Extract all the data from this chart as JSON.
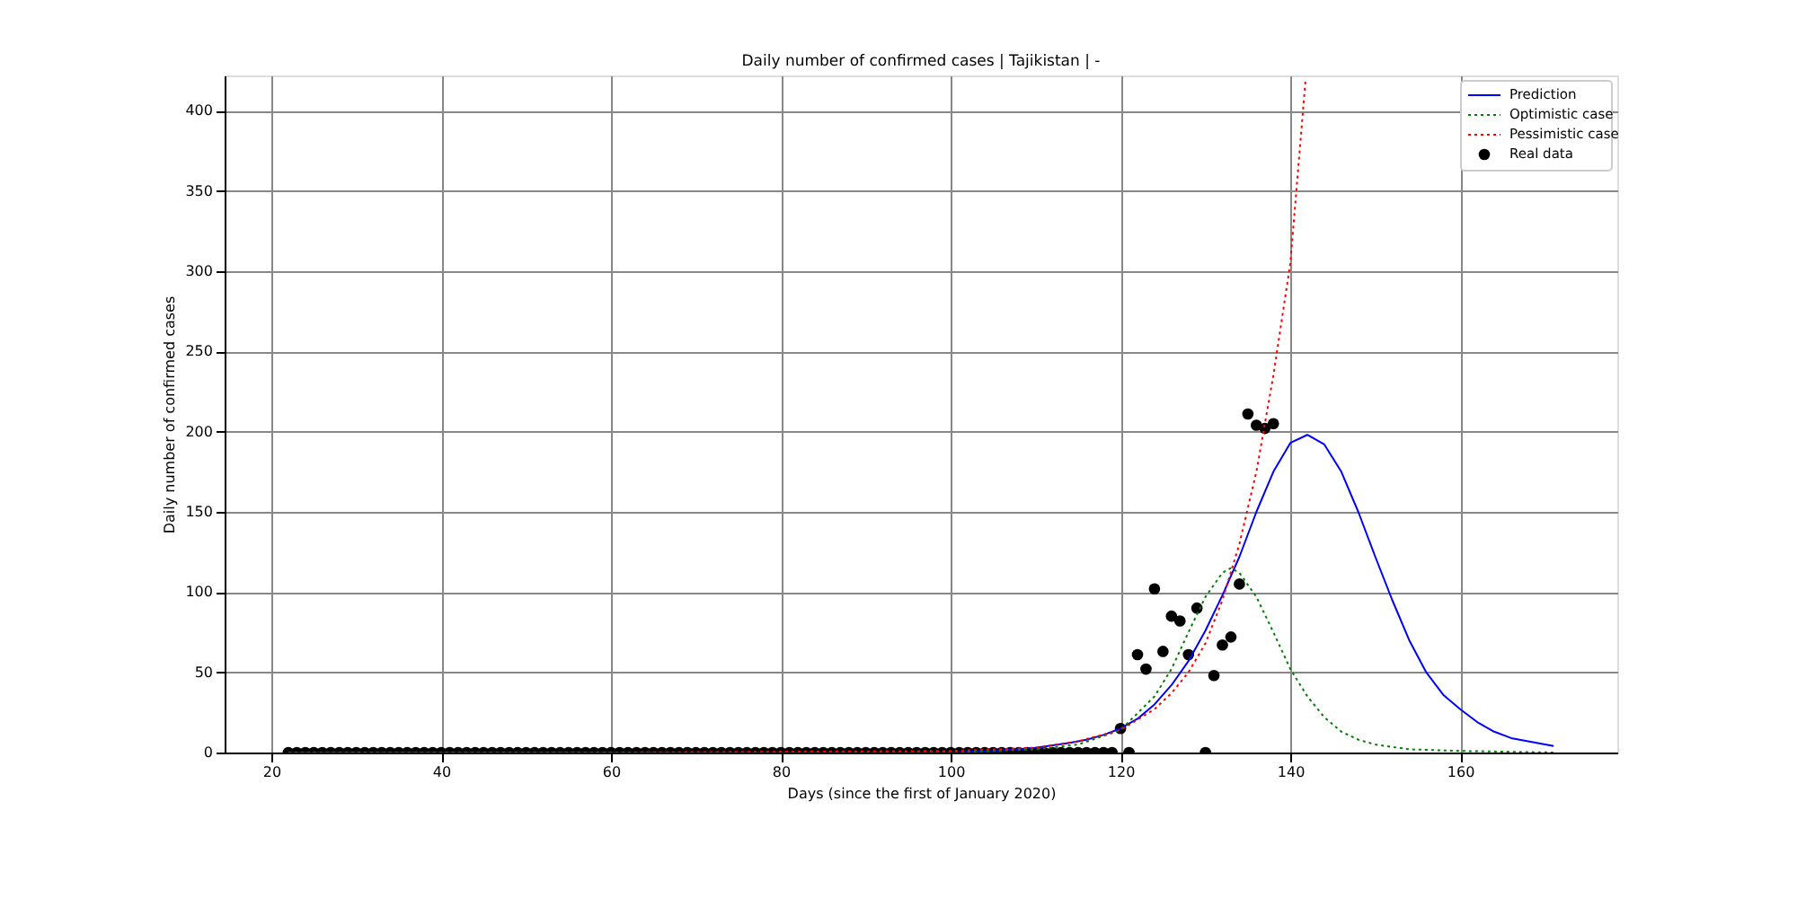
{
  "chart_data": {
    "type": "line",
    "title": "Daily number of confirmed cases | Tajikistan | -",
    "xlabel": "Days (since the first of January 2020)",
    "ylabel": "Daily number of confirmed cases",
    "xlim": [
      14.5,
      178.5
    ],
    "ylim": [
      0,
      422
    ],
    "xticks": [
      20,
      40,
      60,
      80,
      100,
      120,
      140,
      160
    ],
    "yticks": [
      0,
      50,
      100,
      150,
      200,
      250,
      300,
      350,
      400
    ],
    "grid": true,
    "legend": "top right",
    "series": [
      {
        "name": "Prediction",
        "type": "line",
        "color": "#0000ff",
        "line_style": "solid",
        "x": [
          22,
          60,
          90,
          100,
          105,
          110,
          114,
          116,
          118,
          120,
          122,
          124,
          126,
          128,
          130,
          132,
          134,
          136,
          138,
          140,
          142,
          144,
          146,
          148,
          150,
          152,
          154,
          156,
          158,
          160,
          162,
          164,
          166,
          168,
          171
        ],
        "values": [
          0,
          0,
          0,
          0,
          1,
          3,
          6,
          8,
          11,
          15,
          21,
          30,
          42,
          57,
          76,
          98,
          122,
          150,
          175,
          193,
          198,
          192,
          175,
          150,
          122,
          95,
          70,
          50,
          36,
          27,
          19,
          13,
          9,
          7,
          4
        ]
      },
      {
        "name": "Optimistic case",
        "type": "line",
        "color": "#008000",
        "line_style": "dotted",
        "x": [
          22,
          60,
          100,
          110,
          115,
          120,
          124,
          126,
          128,
          130,
          132,
          133,
          134,
          136,
          138,
          140,
          142,
          144,
          146,
          148,
          150,
          154,
          160,
          171
        ],
        "values": [
          0,
          0,
          0,
          2,
          5,
          14,
          35,
          52,
          75,
          97,
          112,
          115,
          112,
          97,
          75,
          52,
          35,
          22,
          13,
          8,
          5,
          2,
          1,
          0
        ]
      },
      {
        "name": "Pessimistic case",
        "type": "line",
        "color": "#ff0000",
        "line_style": "dotted",
        "x": [
          22,
          60,
          100,
          110,
          115,
          120,
          124,
          126,
          128,
          130,
          132,
          134,
          136,
          138,
          140,
          141.8
        ],
        "values": [
          0,
          0,
          1,
          3,
          7,
          14,
          27,
          37,
          50,
          68,
          95,
          130,
          175,
          235,
          305,
          420
        ]
      },
      {
        "name": "Real data",
        "type": "scatter",
        "color": "#000000",
        "marker": "circle",
        "x": [
          22,
          23,
          24,
          25,
          26,
          27,
          28,
          29,
          30,
          31,
          32,
          33,
          34,
          35,
          36,
          37,
          38,
          39,
          40,
          41,
          42,
          43,
          44,
          45,
          46,
          47,
          48,
          49,
          50,
          51,
          52,
          53,
          54,
          55,
          56,
          57,
          58,
          59,
          60,
          61,
          62,
          63,
          64,
          65,
          66,
          67,
          68,
          69,
          70,
          71,
          72,
          73,
          74,
          75,
          76,
          77,
          78,
          79,
          80,
          81,
          82,
          83,
          84,
          85,
          86,
          87,
          88,
          89,
          90,
          91,
          92,
          93,
          94,
          95,
          96,
          97,
          98,
          99,
          100,
          101,
          102,
          103,
          104,
          105,
          106,
          107,
          108,
          109,
          110,
          111,
          112,
          113,
          114,
          115,
          116,
          117,
          118,
          119,
          120,
          121,
          122,
          123,
          124,
          125,
          126,
          127,
          128,
          129,
          130,
          131,
          132,
          133,
          134,
          135,
          136,
          137,
          138
        ],
        "values": [
          0,
          0,
          0,
          0,
          0,
          0,
          0,
          0,
          0,
          0,
          0,
          0,
          0,
          0,
          0,
          0,
          0,
          0,
          0,
          0,
          0,
          0,
          0,
          0,
          0,
          0,
          0,
          0,
          0,
          0,
          0,
          0,
          0,
          0,
          0,
          0,
          0,
          0,
          0,
          0,
          0,
          0,
          0,
          0,
          0,
          0,
          0,
          0,
          0,
          0,
          0,
          0,
          0,
          0,
          0,
          0,
          0,
          0,
          0,
          0,
          0,
          0,
          0,
          0,
          0,
          0,
          0,
          0,
          0,
          0,
          0,
          0,
          0,
          0,
          0,
          0,
          0,
          0,
          0,
          0,
          0,
          0,
          0,
          0,
          0,
          0,
          0,
          0,
          0,
          0,
          0,
          0,
          0,
          0,
          0,
          0,
          0,
          0,
          15,
          0,
          61,
          52,
          102,
          63,
          85,
          82,
          61,
          90,
          0,
          48,
          67,
          72,
          105,
          211,
          204,
          202,
          205
        ]
      }
    ]
  }
}
